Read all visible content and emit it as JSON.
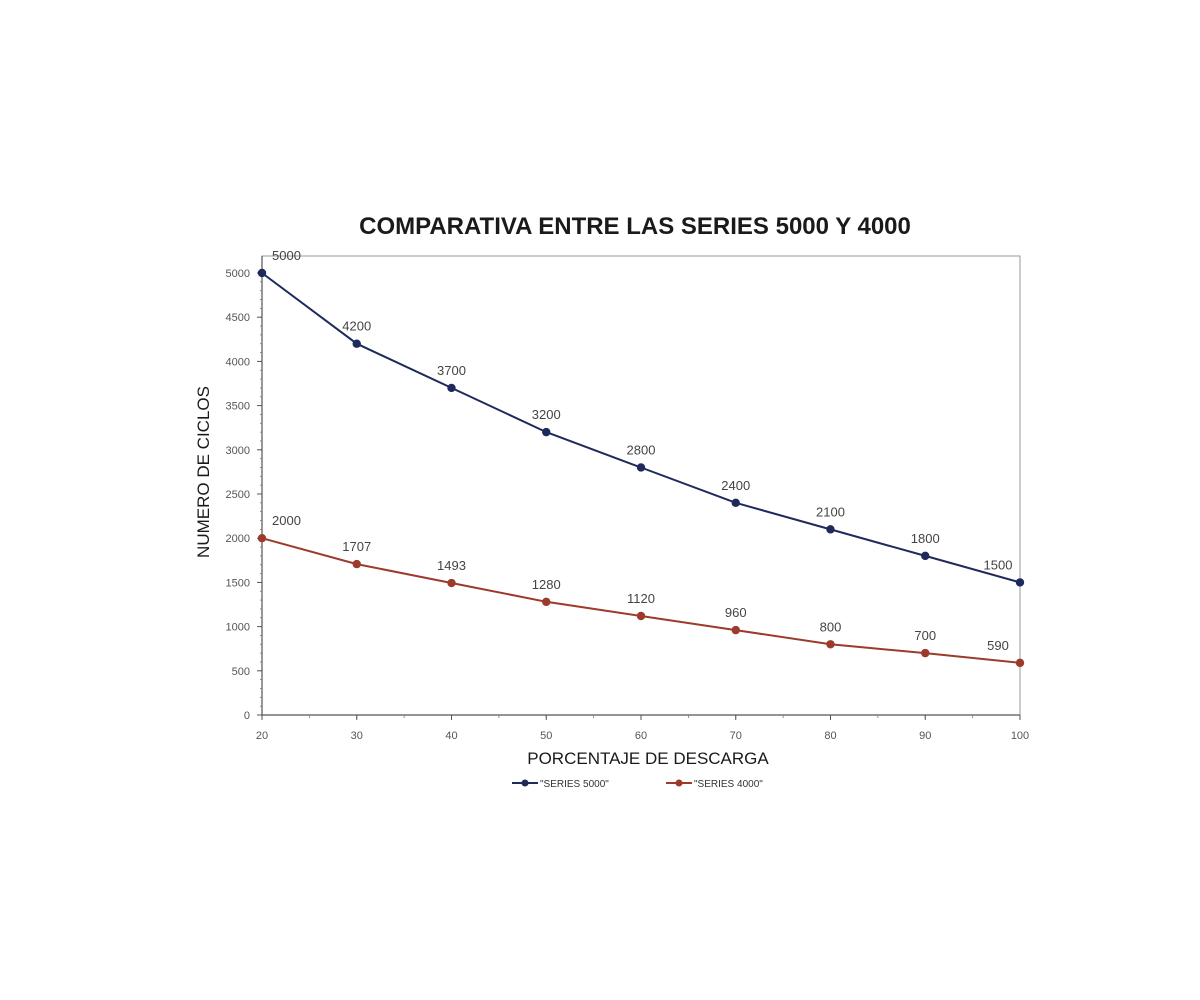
{
  "chart_data": {
    "type": "line",
    "title": "COMPARATIVA ENTRE LAS SERIES 5000 Y 4000",
    "xlabel": "PORCENTAJE DE DESCARGA",
    "ylabel": "NUMERO DE CICLOS",
    "x": [
      20,
      30,
      40,
      50,
      60,
      70,
      80,
      90,
      100
    ],
    "xlim": [
      20,
      100
    ],
    "ylim": [
      0,
      5000
    ],
    "x_ticks": [
      "20",
      "30",
      "40",
      "50",
      "60",
      "70",
      "80",
      "90",
      "100"
    ],
    "y_ticks": [
      "0",
      "500",
      "1000",
      "1500",
      "2000",
      "2500",
      "3000",
      "3500",
      "4000",
      "4500",
      "5000"
    ],
    "grid": false,
    "legend_position": "bottom",
    "series": [
      {
        "name": "\"SERIES 5000\"",
        "color": "#1f2a5c",
        "values": [
          5000,
          4200,
          3700,
          3200,
          2800,
          2400,
          2100,
          1800,
          1500
        ],
        "labels": [
          "5000",
          "4200",
          "3700",
          "3200",
          "2800",
          "2400",
          "2100",
          "1800",
          "1500"
        ]
      },
      {
        "name": "\"SERIES 4000\"",
        "color": "#9c3a2c",
        "values": [
          2000,
          1707,
          1493,
          1280,
          1120,
          960,
          800,
          700,
          590
        ],
        "labels": [
          "2000",
          "1707",
          "1493",
          "1280",
          "1120",
          "960",
          "800",
          "700",
          "590"
        ]
      }
    ]
  }
}
